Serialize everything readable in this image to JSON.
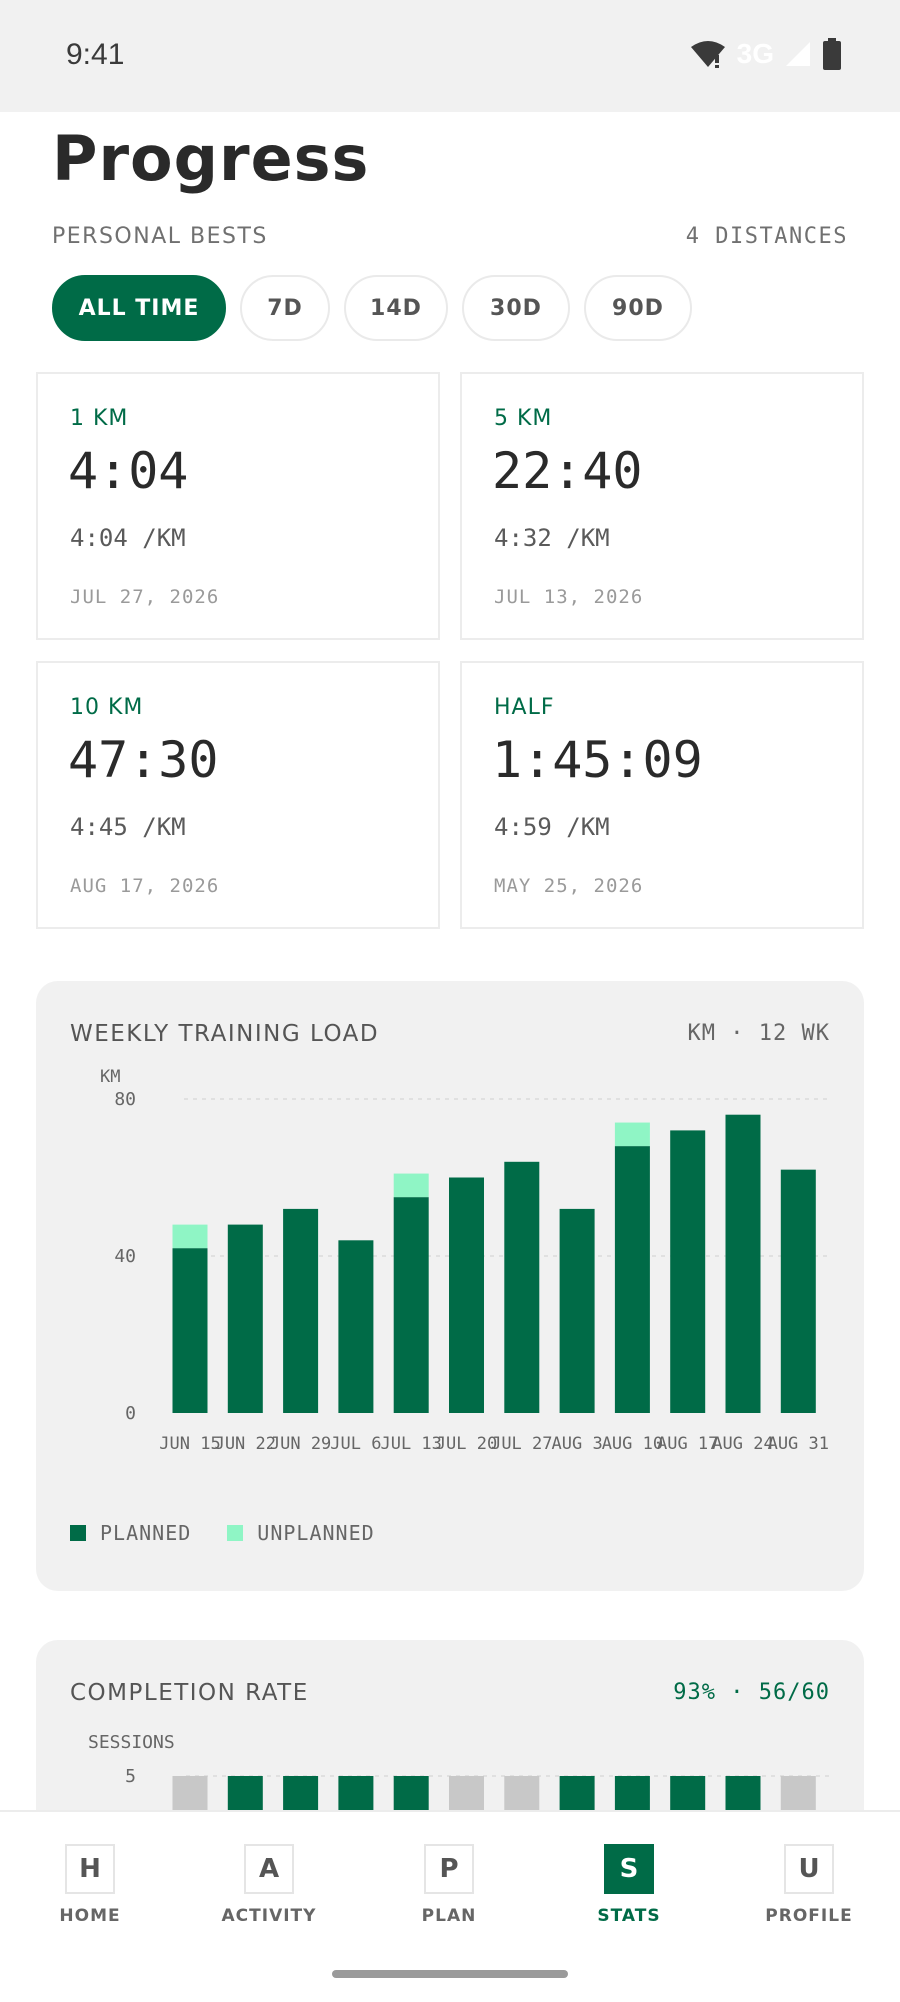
{
  "status": {
    "time": "9:41",
    "network": "3G"
  },
  "page": {
    "title": "Progress"
  },
  "bests": {
    "label": "PERSONAL BESTS",
    "count_label": "4 DISTANCES",
    "filters": [
      "ALL TIME",
      "7D",
      "14D",
      "30D",
      "90D"
    ],
    "active_filter": "ALL TIME",
    "cards": [
      {
        "distance": "1 KM",
        "time": "4:04",
        "pace": "4:04 /KM",
        "date": "JUL 27, 2026"
      },
      {
        "distance": "5 KM",
        "time": "22:40",
        "pace": "4:32 /KM",
        "date": "JUL 13, 2026"
      },
      {
        "distance": "10 KM",
        "time": "47:30",
        "pace": "4:45 /KM",
        "date": "AUG 17, 2026"
      },
      {
        "distance": "HALF",
        "time": "1:45:09",
        "pace": "4:59 /KM",
        "date": "MAY 25, 2026"
      }
    ]
  },
  "load": {
    "title": "WEEKLY TRAINING LOAD",
    "meta": "KM · 12 WK",
    "legend": {
      "planned": "PLANNED",
      "unplanned": "UNPLANNED"
    }
  },
  "completion": {
    "title": "COMPLETION RATE",
    "meta": "93% · 56/60",
    "y_label": "SESSIONS",
    "y_ticks": [
      "5"
    ]
  },
  "colors": {
    "planned": "#006b47",
    "unplanned": "#8ff5c5",
    "missed": "#c8c8c8",
    "accent": "#006b47"
  },
  "nav": [
    {
      "letter": "H",
      "label": "HOME"
    },
    {
      "letter": "A",
      "label": "ACTIVITY"
    },
    {
      "letter": "P",
      "label": "PLAN"
    },
    {
      "letter": "S",
      "label": "STATS",
      "active": true
    },
    {
      "letter": "U",
      "label": "PROFILE"
    }
  ],
  "chart_data": [
    {
      "type": "bar",
      "stacked": true,
      "title": "WEEKLY TRAINING LOAD",
      "ylabel": "KM",
      "ylim": [
        0,
        80
      ],
      "y_ticks": [
        0,
        40,
        80
      ],
      "grid": true,
      "legend": "bottom-left",
      "categories": [
        "JUN 15",
        "JUN 22",
        "JUN 29",
        "JUL 6",
        "JUL 13",
        "JUL 20",
        "JUL 27",
        "AUG 3",
        "AUG 10",
        "AUG 17",
        "AUG 24",
        "AUG 31"
      ],
      "series": [
        {
          "name": "PLANNED",
          "values": [
            42,
            48,
            52,
            44,
            55,
            60,
            64,
            52,
            68,
            72,
            76,
            62
          ]
        },
        {
          "name": "UNPLANNED",
          "values": [
            6,
            0,
            0,
            0,
            6,
            0,
            0,
            0,
            6,
            0,
            0,
            0
          ]
        }
      ]
    },
    {
      "type": "bar",
      "title": "COMPLETION RATE",
      "ylabel": "SESSIONS",
      "y_ticks": [
        5
      ],
      "grid": true,
      "note": "visible portion cut off at bottom",
      "bar_status": [
        "missed",
        "done",
        "done",
        "done",
        "done",
        "missed",
        "missed",
        "done",
        "done",
        "done",
        "done",
        "missed"
      ]
    }
  ]
}
